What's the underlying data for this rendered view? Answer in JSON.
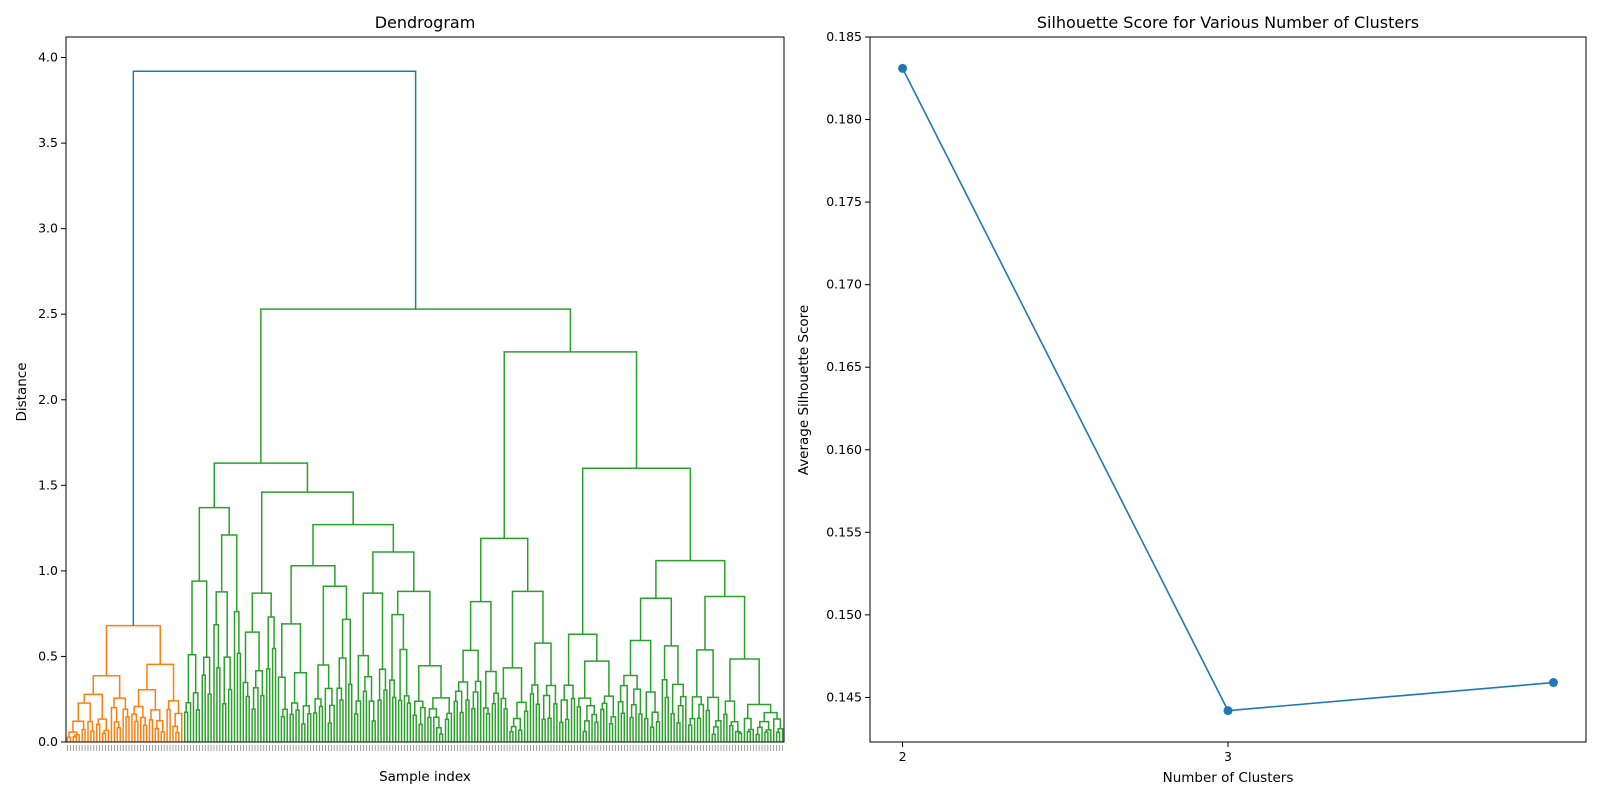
{
  "chart_data": [
    {
      "type": "dendrogram",
      "title": "Dendrogram",
      "xlabel": "Sample index",
      "ylabel": "Distance",
      "ylim": [
        0,
        4.12
      ],
      "yticks": [
        0.0,
        0.5,
        1.0,
        1.5,
        2.0,
        2.5,
        3.0,
        3.5,
        4.0
      ],
      "yticklabels": [
        "0.0",
        "0.5",
        "1.0",
        "1.5",
        "2.0",
        "2.5",
        "3.0",
        "3.5",
        "4.0"
      ],
      "n_samples": 245,
      "link_colors": {
        "above_threshold": "#1f77b4",
        "cluster_1": "#ff7f0e",
        "cluster_2": "#2ca02c"
      },
      "root_merge": {
        "height": 3.92,
        "color": "#1f77b4"
      },
      "cluster_1": {
        "color": "#ff7f0e",
        "n_leaves": 40,
        "merge_height": 0.68
      },
      "cluster_2": {
        "color": "#2ca02c",
        "n_leaves": 205,
        "merge_height": 2.53
      },
      "major_merges": [
        {
          "height": 3.92,
          "children": [
            "cluster_1",
            "cluster_2"
          ]
        },
        {
          "height": 2.53,
          "children": [
            "left_block",
            "right_block"
          ]
        },
        {
          "height": 2.28,
          "children": [
            "right_a",
            "right_b"
          ]
        },
        {
          "height": 1.63,
          "children": [
            "left_a",
            "left_b"
          ]
        },
        {
          "height": 1.6,
          "children": [
            "right_b1",
            "right_b2"
          ]
        },
        {
          "height": 1.46,
          "children": [
            "left_b1",
            "left_b2"
          ]
        },
        {
          "height": 1.37,
          "children": [
            "left_a1",
            "left_a2"
          ]
        },
        {
          "height": 1.27,
          "children": [
            "left_b2a",
            "left_b2b"
          ]
        },
        {
          "height": 1.19,
          "children": [
            "right_a1",
            "right_a2"
          ]
        },
        {
          "height": 1.06,
          "children": [
            "right_b2a",
            "right_b2b"
          ]
        }
      ]
    },
    {
      "type": "line",
      "title": "Silhouette Score for Various Number of Clusters",
      "xlabel": "Number of Clusters",
      "ylabel": "Average Silhouette Score",
      "x": [
        2,
        3,
        4
      ],
      "y": [
        0.1831,
        0.1442,
        0.1459
      ],
      "xticks": [
        2,
        3
      ],
      "xticklabels": [
        "2",
        "3"
      ],
      "yticks": [
        0.145,
        0.15,
        0.155,
        0.16,
        0.165,
        0.17,
        0.175,
        0.18,
        0.185
      ],
      "yticklabels": [
        "0.145",
        "0.150",
        "0.155",
        "0.160",
        "0.165",
        "0.170",
        "0.175",
        "0.180",
        "0.185"
      ],
      "ylim": [
        0.1423,
        0.185
      ],
      "xlim": [
        1.9,
        4.1
      ],
      "marker": "circle",
      "color": "#1f77b4"
    }
  ]
}
